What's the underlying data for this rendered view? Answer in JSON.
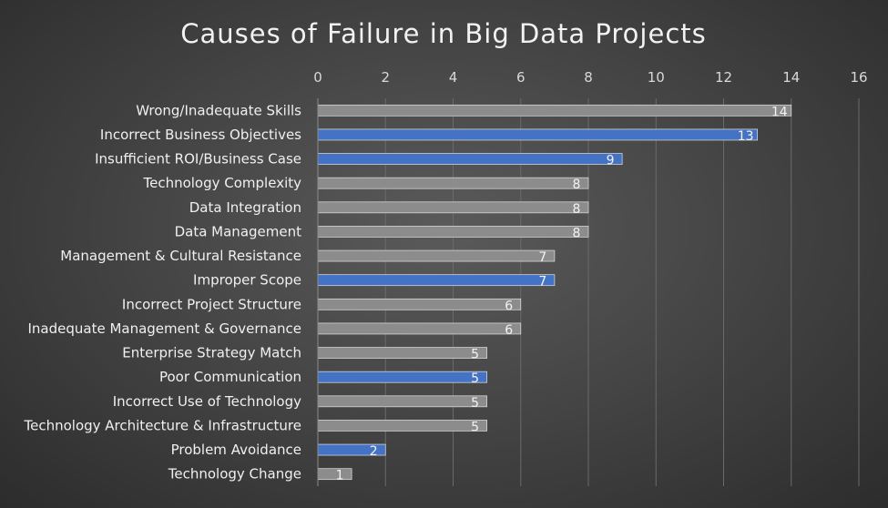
{
  "chart_data": {
    "type": "bar",
    "orientation": "horizontal",
    "title": "Causes of Failure in Big Data Projects",
    "xlabel": "",
    "ylabel": "",
    "xlim": [
      0,
      16
    ],
    "x_ticks": [
      0,
      2,
      4,
      6,
      8,
      10,
      12,
      14,
      16
    ],
    "x_axis_position": "top",
    "grid": "vertical",
    "legend": "none",
    "data_labels": true,
    "categories": [
      "Wrong/Inadequate Skills",
      "Incorrect Business Objectives",
      "Insufficient ROI/Business Case",
      "Technology Complexity",
      "Data Integration",
      "Data Management",
      "Management & Cultural Resistance",
      "Improper Scope",
      "Incorrect Project Structure",
      "Inadequate Management & Governance",
      "Enterprise Strategy Match",
      "Poor Communication",
      "Incorrect Use of Technology",
      "Technology Architecture & Infrastructure",
      "Problem Avoidance",
      "Technology Change"
    ],
    "values": [
      14,
      13,
      9,
      8,
      8,
      8,
      7,
      7,
      6,
      6,
      5,
      5,
      5,
      5,
      2,
      1
    ],
    "highlighted": [
      false,
      true,
      true,
      false,
      false,
      false,
      false,
      true,
      false,
      false,
      false,
      true,
      false,
      false,
      true,
      false
    ],
    "colors": {
      "default_bar": "#8c8c8c",
      "highlight_bar": "#4472c4",
      "bar_outline": "#d9d9d9",
      "text": "#f2f2f2",
      "gridline": "#6a6a6a"
    }
  }
}
